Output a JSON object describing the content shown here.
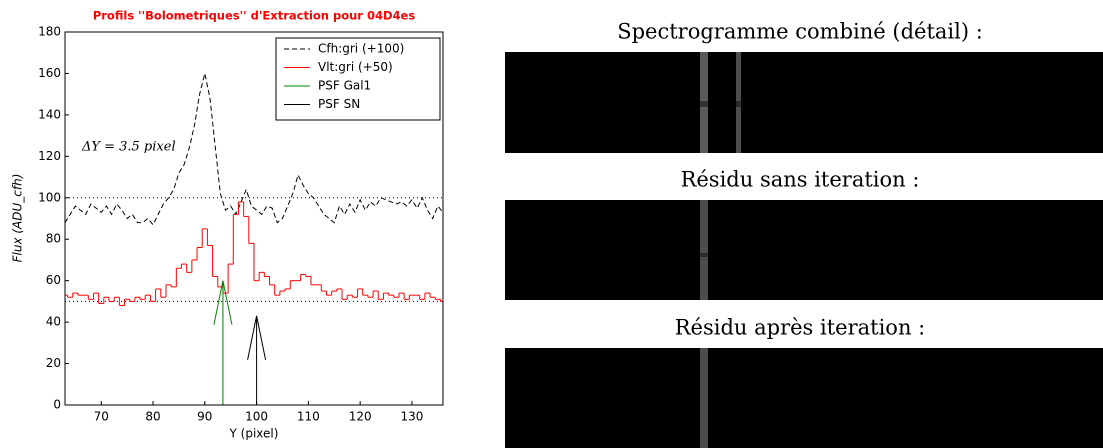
{
  "chart_data": {
    "type": "line",
    "title": "Profils ''Bolometriques'' d'Extraction pour 04D4es",
    "x_label": "Y (pixel)",
    "y_label": "Flux (ADU_cfh)",
    "annotation": "ΔY = 3.5 pixel",
    "xlim": [
      63,
      136
    ],
    "ylim": [
      0,
      180
    ],
    "xticks": [
      70,
      80,
      90,
      100,
      110,
      120,
      130
    ],
    "yticks": [
      0,
      20,
      40,
      60,
      80,
      100,
      120,
      140,
      160,
      180
    ],
    "hlines": [
      100,
      50
    ],
    "legend": "upper right",
    "series": [
      {
        "name": "Cfh:gri (+100)",
        "color": "#000000",
        "style": "dashed",
        "x": [
          63,
          64,
          65,
          66,
          67,
          68,
          69,
          70,
          71,
          72,
          73,
          74,
          75,
          76,
          77,
          78,
          79,
          80,
          81,
          82,
          83,
          84,
          85,
          86,
          87,
          88,
          89,
          90,
          91,
          92,
          93,
          94,
          95,
          96,
          97,
          98,
          99,
          100,
          101,
          102,
          103,
          104,
          105,
          106,
          107,
          108,
          109,
          110,
          111,
          112,
          113,
          114,
          115,
          116,
          117,
          118,
          119,
          120,
          121,
          122,
          123,
          124,
          125,
          126,
          127,
          128,
          129,
          130,
          131,
          132,
          133,
          134,
          135,
          136
        ],
        "values": [
          88,
          92,
          96,
          94,
          92,
          97,
          95,
          93,
          96,
          92,
          97,
          94,
          90,
          92,
          88,
          88,
          90,
          87,
          92,
          97,
          100,
          104,
          112,
          116,
          124,
          135,
          150,
          160,
          148,
          125,
          102,
          94,
          96,
          92,
          98,
          104,
          96,
          94,
          92,
          96,
          95,
          88,
          90,
          96,
          102,
          111,
          106,
          102,
          100,
          96,
          92,
          90,
          88,
          96,
          92,
          97,
          93,
          99,
          94,
          98,
          96,
          100,
          99,
          98,
          97,
          98,
          96,
          99,
          95,
          100,
          94,
          90,
          96,
          93
        ]
      },
      {
        "name": "Vlt:gri (+50)",
        "color": "#ff0000",
        "style": "steps",
        "x": [
          63,
          64,
          65,
          66,
          67,
          68,
          69,
          70,
          71,
          72,
          73,
          74,
          75,
          76,
          77,
          78,
          79,
          80,
          81,
          82,
          83,
          84,
          85,
          86,
          87,
          88,
          89,
          90,
          91,
          92,
          93,
          94,
          95,
          96,
          97,
          98,
          99,
          100,
          101,
          102,
          103,
          104,
          105,
          106,
          107,
          108,
          109,
          110,
          111,
          112,
          113,
          114,
          115,
          116,
          117,
          118,
          119,
          120,
          121,
          122,
          123,
          124,
          125,
          126,
          127,
          128,
          129,
          130,
          131,
          132,
          133,
          134,
          135,
          136
        ],
        "values": [
          53,
          52,
          54,
          53,
          53,
          51,
          54,
          49,
          52,
          50,
          52,
          48,
          51,
          50,
          52,
          51,
          53,
          50,
          56,
          52,
          58,
          57,
          66,
          68,
          64,
          70,
          76,
          85,
          77,
          62,
          57,
          54,
          68,
          92,
          98,
          91,
          78,
          60,
          64,
          62,
          58,
          53,
          55,
          56,
          60,
          60,
          63,
          62,
          58,
          58,
          55,
          53,
          55,
          56,
          51,
          53,
          52,
          56,
          53,
          52,
          55,
          51,
          54,
          53,
          52,
          54,
          51,
          53,
          53,
          51,
          54,
          52,
          51,
          50
        ]
      },
      {
        "name": "PSF Gal1",
        "color": "#008000",
        "style": "arrow",
        "x": [
          93.5,
          93.5
        ],
        "values": [
          0,
          60
        ]
      },
      {
        "name": "PSF SN",
        "color": "#000000",
        "style": "arrow",
        "x": [
          100,
          100
        ],
        "values": [
          0,
          43
        ]
      }
    ]
  },
  "images": {
    "titles": [
      "Spectrogramme combiné (détail) :",
      "Résidu sans iteration :",
      "Résidu après iteration :"
    ]
  }
}
